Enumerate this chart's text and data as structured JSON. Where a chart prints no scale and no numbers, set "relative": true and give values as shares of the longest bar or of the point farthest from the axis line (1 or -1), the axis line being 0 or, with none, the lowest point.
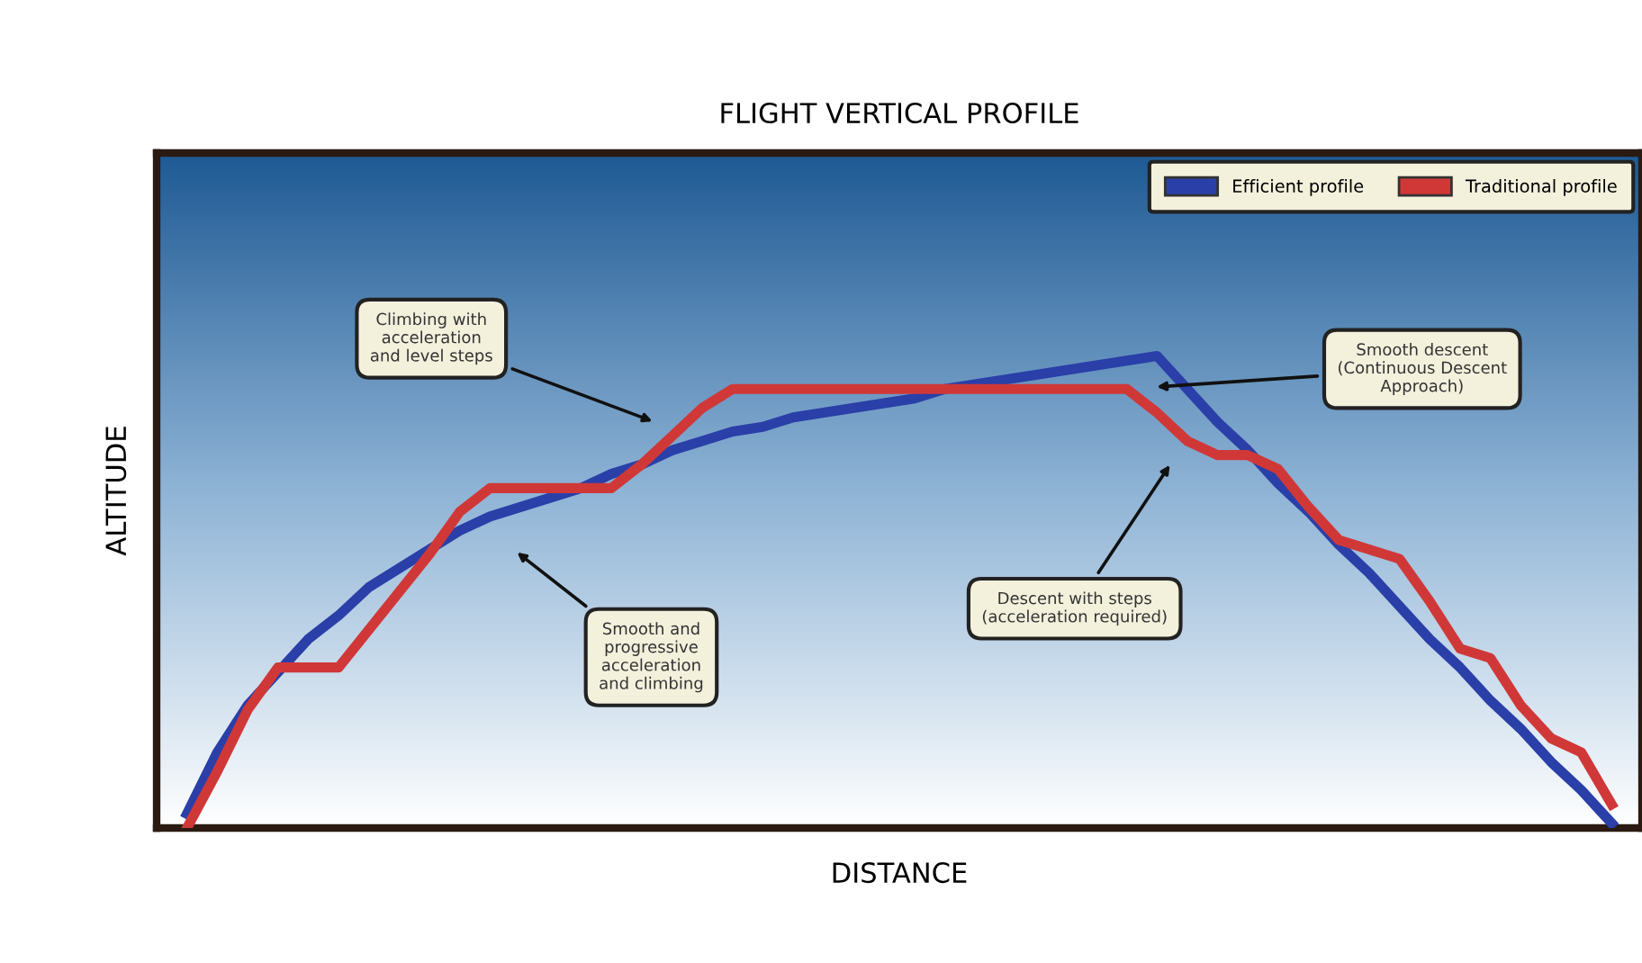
{
  "chart_data": {
    "type": "line",
    "title": "FLIGHT VERTICAL PROFILE",
    "xlabel": "DISTANCE",
    "ylabel": "ALTITUDE",
    "relative": true,
    "legend": "top right",
    "marker": "none",
    "line_style": "solid",
    "categories": [
      null,
      null,
      null,
      null,
      null,
      null,
      null,
      null,
      null,
      null,
      null,
      null,
      null,
      null,
      null,
      null,
      null,
      null,
      null,
      null,
      null,
      null,
      null,
      null,
      null,
      null,
      null,
      null,
      null,
      null,
      null,
      null,
      null,
      null,
      null,
      null,
      null,
      null,
      null,
      null,
      null,
      null,
      null,
      null,
      null,
      null,
      null,
      null
    ],
    "series": [
      {
        "name": "Efficient profile",
        "color": "#2a3fa8",
        "values": [
          0.03,
          0.16,
          0.26,
          0.33,
          0.4,
          0.45,
          0.51,
          0.55,
          0.59,
          0.63,
          0.66,
          0.68,
          0.7,
          0.72,
          0.75,
          0.77,
          0.8,
          0.82,
          0.84,
          0.85,
          0.87,
          0.88,
          0.89,
          0.9,
          0.91,
          0.93,
          0.94,
          0.95,
          0.96,
          0.97,
          0.98,
          0.99,
          1.0,
          0.93,
          0.86,
          0.8,
          0.73,
          0.67,
          0.6,
          0.54,
          0.47,
          0.4,
          0.34,
          0.27,
          0.21,
          0.14,
          0.08,
          0.01
        ]
      },
      {
        "name": "Traditional profile",
        "color": "#d03838",
        "values": [
          0.0,
          0.12,
          0.25,
          0.34,
          0.34,
          0.34,
          0.42,
          0.5,
          0.58,
          0.67,
          0.72,
          0.72,
          0.72,
          0.72,
          0.72,
          0.77,
          0.83,
          0.89,
          0.93,
          0.93,
          0.93,
          0.93,
          0.93,
          0.93,
          0.93,
          0.93,
          0.93,
          0.93,
          0.93,
          0.93,
          0.93,
          0.93,
          0.88,
          0.82,
          0.79,
          0.79,
          0.76,
          0.68,
          0.61,
          0.59,
          0.57,
          0.48,
          0.38,
          0.36,
          0.26,
          0.19,
          0.16,
          0.05
        ]
      }
    ],
    "annotations": [
      "Climbing with\nacceleration\nand level steps",
      "Smooth descent\n(Continuous Descent\nApproach)",
      "Smooth and\nprogressive\nacceleration\nand climbing",
      "Descent with steps\n(acceleration required)"
    ]
  }
}
